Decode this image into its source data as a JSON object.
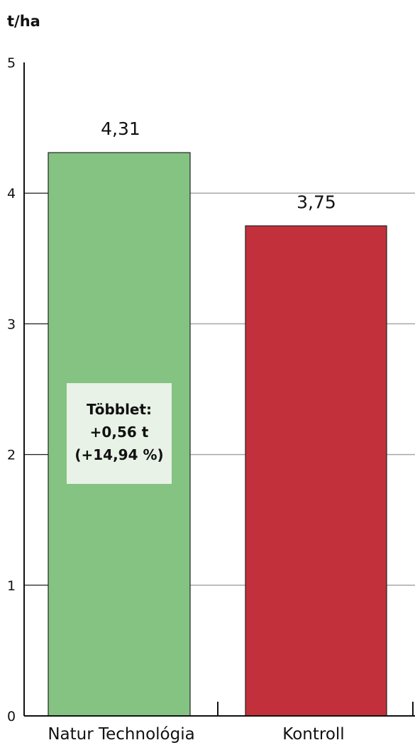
{
  "chart_data": {
    "type": "bar",
    "ylabel": "t/ha",
    "ylim": [
      0,
      5
    ],
    "yticks": [
      "0",
      "1",
      "2",
      "3",
      "4",
      "5"
    ],
    "grid": true,
    "categories": [
      "Natur Technológia",
      "Kontroll"
    ],
    "values": [
      4.31,
      3.75
    ],
    "value_labels": [
      "4,31",
      "3,75"
    ],
    "colors": [
      "#85c382",
      "#c2313b"
    ],
    "annotation": {
      "lines": [
        "Többlet:",
        "+0,56 t",
        "(+14,94 %)"
      ],
      "background": "#e8f2e6"
    }
  }
}
